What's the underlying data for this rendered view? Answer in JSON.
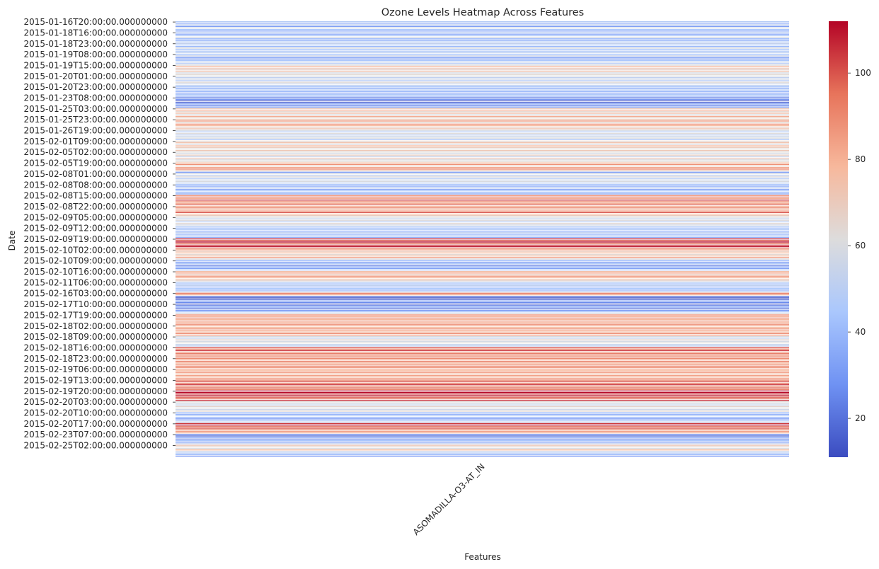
{
  "chart_data": {
    "type": "heatmap",
    "title": "Ozone Levels Heatmap Across Features",
    "xlabel": "Features",
    "ylabel": "Date",
    "colormap": "coolwarm",
    "colormap_stops": [
      "#3b4cc0",
      "#6f92f3",
      "#aac7fd",
      "#dddcdc",
      "#f7b89c",
      "#e7745b",
      "#b40426"
    ],
    "x_categories": [
      "ASOMADILLA-O3-AT_IN"
    ],
    "y_tick_labels": [
      "2015-01-16T20:00:00.000000000",
      "2015-01-18T16:00:00.000000000",
      "2015-01-18T23:00:00.000000000",
      "2015-01-19T08:00:00.000000000",
      "2015-01-19T15:00:00.000000000",
      "2015-01-20T01:00:00.000000000",
      "2015-01-20T23:00:00.000000000",
      "2015-01-23T08:00:00.000000000",
      "2015-01-25T03:00:00.000000000",
      "2015-01-25T23:00:00.000000000",
      "2015-01-26T19:00:00.000000000",
      "2015-02-01T09:00:00.000000000",
      "2015-02-05T02:00:00.000000000",
      "2015-02-05T19:00:00.000000000",
      "2015-02-08T01:00:00.000000000",
      "2015-02-08T08:00:00.000000000",
      "2015-02-08T15:00:00.000000000",
      "2015-02-08T22:00:00.000000000",
      "2015-02-09T05:00:00.000000000",
      "2015-02-09T12:00:00.000000000",
      "2015-02-09T19:00:00.000000000",
      "2015-02-10T02:00:00.000000000",
      "2015-02-10T09:00:00.000000000",
      "2015-02-10T16:00:00.000000000",
      "2015-02-11T06:00:00.000000000",
      "2015-02-16T03:00:00.000000000",
      "2015-02-17T10:00:00.000000000",
      "2015-02-17T19:00:00.000000000",
      "2015-02-18T02:00:00.000000000",
      "2015-02-18T09:00:00.000000000",
      "2015-02-18T16:00:00.000000000",
      "2015-02-18T23:00:00.000000000",
      "2015-02-19T06:00:00.000000000",
      "2015-02-19T13:00:00.000000000",
      "2015-02-19T20:00:00.000000000",
      "2015-02-20T03:00:00.000000000",
      "2015-02-20T10:00:00.000000000",
      "2015-02-20T17:00:00.000000000",
      "2015-02-23T07:00:00.000000000",
      "2015-02-25T02:00:00.000000000"
    ],
    "values_per_tick_interval": 7,
    "values": [
      48,
      38,
      52,
      30,
      55,
      44,
      36,
      50,
      34,
      46,
      58,
      40,
      35,
      49,
      53,
      45,
      38,
      60,
      42,
      47,
      51,
      44,
      56,
      30,
      28,
      45,
      52,
      48,
      62,
      78,
      70,
      66,
      74,
      58,
      64,
      60,
      52,
      55,
      48,
      63,
      57,
      50,
      42,
      35,
      48,
      40,
      30,
      46,
      38,
      22,
      28,
      15,
      18,
      33,
      25,
      30,
      70,
      80,
      65,
      75,
      60,
      82,
      68,
      72,
      86,
      64,
      90,
      78,
      68,
      74,
      58,
      48,
      62,
      52,
      55,
      60,
      47,
      66,
      74,
      60,
      78,
      70,
      64,
      72,
      62,
      58,
      68,
      55,
      70,
      60,
      64,
      76,
      88,
      70,
      84,
      92,
      72,
      30,
      58,
      52,
      62,
      48,
      56,
      60,
      50,
      42,
      36,
      50,
      32,
      46,
      40,
      35,
      88,
      96,
      80,
      104,
      90,
      84,
      98,
      80,
      92,
      75,
      86,
      100,
      78,
      70,
      60,
      54,
      62,
      50,
      64,
      58,
      48,
      42,
      48,
      36,
      52,
      40,
      46,
      38,
      108,
      100,
      112,
      96,
      104,
      110,
      95,
      82,
      70,
      78,
      64,
      74,
      86,
      60,
      40,
      28,
      46,
      22,
      36,
      30,
      44,
      76,
      84,
      70,
      88,
      80,
      72,
      66,
      48,
      40,
      52,
      36,
      44,
      38,
      50,
      94,
      85,
      22,
      12,
      18,
      30,
      26,
      16,
      24,
      35,
      20,
      28,
      42,
      60,
      88,
      82,
      92,
      78,
      86,
      80,
      90,
      84,
      78,
      88,
      82,
      76,
      90,
      86,
      60,
      52,
      66,
      58,
      62,
      54,
      50,
      100,
      92,
      104,
      88,
      96,
      86,
      94,
      90,
      84,
      94,
      80,
      86,
      92,
      88,
      82,
      78,
      88,
      76,
      84,
      80,
      86,
      92,
      100,
      96,
      104,
      88,
      98,
      94,
      110,
      112,
      104,
      108,
      100,
      96,
      106,
      62,
      58,
      54,
      66,
      60,
      56,
      64,
      42,
      36,
      48,
      40,
      30,
      46,
      52,
      104,
      110,
      96,
      100,
      92,
      86,
      80,
      26,
      18,
      36,
      24,
      44,
      30,
      52,
      72,
      66,
      60,
      78,
      54,
      48,
      40,
      28
    ],
    "colorbar": {
      "vmin": 11,
      "vmax": 112,
      "ticks": [
        20,
        40,
        60,
        80,
        100
      ]
    }
  }
}
